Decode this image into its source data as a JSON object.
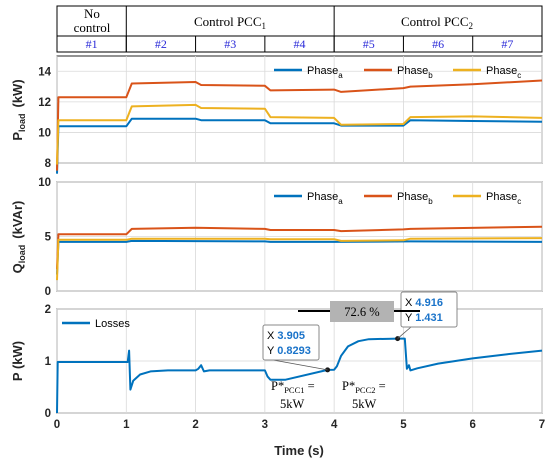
{
  "header": {
    "groups": [
      {
        "label": "No control",
        "line1": "No",
        "line2": "control",
        "from": 0,
        "to": 1
      },
      {
        "label": "Control PCC1",
        "base": "Control PCC",
        "sub": "1",
        "from": 1,
        "to": 4
      },
      {
        "label": "Control PCC2",
        "base": "Control PCC",
        "sub": "2",
        "from": 4,
        "to": 7
      }
    ],
    "intervals": [
      "#1",
      "#2",
      "#3",
      "#4",
      "#5",
      "#6",
      "#7"
    ]
  },
  "colors": {
    "phase_a": "#0072bd",
    "phase_b": "#d95319",
    "phase_c": "#edb120",
    "losses": "#0072bd"
  },
  "chart_data": [
    {
      "type": "line",
      "ylabel": "P",
      "ylabel_sub": "load",
      "ylabel_unit": "(kW)",
      "xlim": [
        0,
        7
      ],
      "ylim": [
        8,
        15
      ],
      "yticks": [
        8,
        10,
        12,
        14
      ],
      "legend": "top-right",
      "series": [
        {
          "name": "Phase a",
          "legend_base": "Phase",
          "legend_sub": "a",
          "color": "#0072bd",
          "points": [
            [
              0,
              7.3
            ],
            [
              0.02,
              10.4
            ],
            [
              1.0,
              10.4
            ],
            [
              1.08,
              10.9
            ],
            [
              2.0,
              10.9
            ],
            [
              2.08,
              10.8
            ],
            [
              3.0,
              10.8
            ],
            [
              3.08,
              10.6
            ],
            [
              4.0,
              10.6
            ],
            [
              4.1,
              10.45
            ],
            [
              5.0,
              10.45
            ],
            [
              5.1,
              10.8
            ],
            [
              6.0,
              10.75
            ],
            [
              7.0,
              10.7
            ]
          ]
        },
        {
          "name": "Phase b",
          "legend_base": "Phase",
          "legend_sub": "b",
          "color": "#d95319",
          "points": [
            [
              0,
              7.5
            ],
            [
              0.02,
              12.3
            ],
            [
              1.0,
              12.3
            ],
            [
              1.08,
              13.2
            ],
            [
              2.0,
              13.3
            ],
            [
              2.08,
              13.1
            ],
            [
              3.0,
              13.05
            ],
            [
              3.08,
              12.75
            ],
            [
              4.0,
              12.8
            ],
            [
              4.1,
              12.65
            ],
            [
              5.0,
              12.9
            ],
            [
              5.1,
              13.0
            ],
            [
              6.0,
              13.15
            ],
            [
              7.0,
              13.4
            ]
          ]
        },
        {
          "name": "Phase c",
          "legend_base": "Phase",
          "legend_sub": "c",
          "color": "#edb120",
          "points": [
            [
              0,
              7.9
            ],
            [
              0.02,
              10.8
            ],
            [
              1.0,
              10.8
            ],
            [
              1.08,
              11.7
            ],
            [
              2.0,
              11.8
            ],
            [
              2.08,
              11.6
            ],
            [
              3.0,
              11.55
            ],
            [
              3.08,
              11.0
            ],
            [
              4.0,
              10.95
            ],
            [
              4.1,
              10.5
            ],
            [
              5.0,
              10.55
            ],
            [
              5.1,
              11.0
            ],
            [
              6.0,
              11.05
            ],
            [
              7.0,
              10.95
            ]
          ]
        }
      ]
    },
    {
      "type": "line",
      "ylabel": "Q",
      "ylabel_sub": "load",
      "ylabel_unit": "(kVAr)",
      "xlim": [
        0,
        7
      ],
      "ylim": [
        0,
        10
      ],
      "yticks": [
        0,
        5,
        10
      ],
      "legend": "top-right",
      "series": [
        {
          "name": "Phase a",
          "legend_base": "Phase",
          "legend_sub": "a",
          "color": "#0072bd",
          "points": [
            [
              0,
              1.5
            ],
            [
              0.02,
              4.5
            ],
            [
              1.0,
              4.5
            ],
            [
              1.08,
              4.6
            ],
            [
              3.0,
              4.55
            ],
            [
              3.08,
              4.5
            ],
            [
              4.0,
              4.5
            ],
            [
              5.1,
              4.55
            ],
            [
              7.0,
              4.5
            ]
          ]
        },
        {
          "name": "Phase b",
          "legend_base": "Phase",
          "legend_sub": "b",
          "color": "#d95319",
          "points": [
            [
              0,
              2.0
            ],
            [
              0.02,
              5.2
            ],
            [
              1.0,
              5.2
            ],
            [
              1.08,
              5.7
            ],
            [
              2.0,
              5.8
            ],
            [
              3.0,
              5.7
            ],
            [
              3.08,
              5.6
            ],
            [
              4.0,
              5.6
            ],
            [
              4.1,
              5.5
            ],
            [
              5.0,
              5.65
            ],
            [
              5.1,
              5.7
            ],
            [
              7.0,
              5.9
            ]
          ]
        },
        {
          "name": "Phase c",
          "legend_base": "Phase",
          "legend_sub": "c",
          "color": "#edb120",
          "points": [
            [
              0,
              1.0
            ],
            [
              0.02,
              4.7
            ],
            [
              1.0,
              4.7
            ],
            [
              1.08,
              4.8
            ],
            [
              3.0,
              4.8
            ],
            [
              3.08,
              4.75
            ],
            [
              4.0,
              4.75
            ],
            [
              4.1,
              4.6
            ],
            [
              5.0,
              4.65
            ],
            [
              5.1,
              4.8
            ],
            [
              7.0,
              4.85
            ]
          ]
        }
      ]
    },
    {
      "type": "line",
      "ylabel": "P (kW)",
      "xlabel": "Time (s)",
      "xlim": [
        0,
        7
      ],
      "ylim": [
        0,
        2
      ],
      "xticks": [
        0,
        1,
        2,
        3,
        4,
        5,
        6,
        7
      ],
      "yticks": [
        0,
        1,
        2
      ],
      "legend": "top-left",
      "series": [
        {
          "name": "Losses",
          "color": "#0072bd",
          "points": [
            [
              0,
              0
            ],
            [
              0.01,
              0.98
            ],
            [
              1.0,
              0.98
            ],
            [
              1.02,
              0.98
            ],
            [
              1.04,
              1.2
            ],
            [
              1.06,
              0.45
            ],
            [
              1.1,
              0.62
            ],
            [
              1.2,
              0.74
            ],
            [
              1.35,
              0.8
            ],
            [
              1.6,
              0.82
            ],
            [
              2.0,
              0.82
            ],
            [
              2.04,
              0.85
            ],
            [
              2.08,
              0.92
            ],
            [
              2.12,
              0.8
            ],
            [
              2.2,
              0.82
            ],
            [
              3.0,
              0.82
            ],
            [
              3.04,
              0.7
            ],
            [
              3.08,
              0.64
            ],
            [
              3.3,
              0.64
            ],
            [
              3.905,
              0.8293
            ],
            [
              4.0,
              0.83
            ],
            [
              4.04,
              0.9
            ],
            [
              4.1,
              1.1
            ],
            [
              4.2,
              1.28
            ],
            [
              4.35,
              1.38
            ],
            [
              4.5,
              1.42
            ],
            [
              4.916,
              1.431
            ],
            [
              5.0,
              1.43
            ],
            [
              5.02,
              1.43
            ],
            [
              5.05,
              0.85
            ],
            [
              5.08,
              0.92
            ],
            [
              5.1,
              0.82
            ],
            [
              5.2,
              0.86
            ],
            [
              5.5,
              0.95
            ],
            [
              6.0,
              1.05
            ],
            [
              6.5,
              1.13
            ],
            [
              7.0,
              1.2
            ]
          ]
        }
      ],
      "datatips": [
        {
          "x": 3.905,
          "y": 0.8293,
          "x_label": "X",
          "y_label": "Y",
          "x_text": "3.905",
          "y_text": "0.8293"
        },
        {
          "x": 4.916,
          "y": 1.431,
          "x_label": "X",
          "y_label": "Y",
          "x_text": "4.916",
          "y_text": "1.431"
        }
      ],
      "annotations": {
        "percent": "72.6 %",
        "pcc1_line1": "P*",
        "pcc1_sub": "PCC1",
        "pcc1_eq": " =",
        "pcc1_line2": "5kW",
        "pcc2_line1": "P*",
        "pcc2_sub": "PCC2",
        "pcc2_eq": " =",
        "pcc2_line2": "5kW"
      }
    }
  ]
}
